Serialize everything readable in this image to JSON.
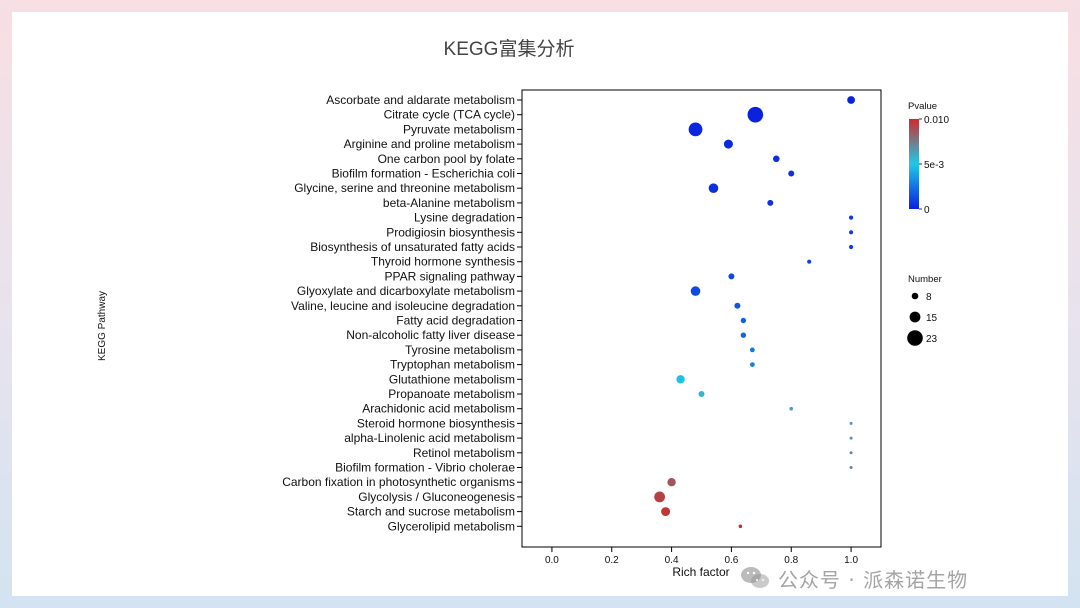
{
  "colors": {
    "pvalue_low": "#0a1fe0",
    "pvalue_mid": "#1fc8e8",
    "pvalue_high": "#cf2b2b",
    "panel_border": "#000000",
    "title_text": "#444444"
  },
  "watermark": {
    "text": "公众号 · 派森诺生物",
    "icon": "wechat-icon"
  },
  "chart_data": {
    "type": "scatter",
    "title": "KEGG富集分析",
    "xlabel": "Rich factor",
    "ylabel": "KEGG Pathway",
    "xlim": [
      -0.1,
      1.1
    ],
    "xticks": [
      "0.0",
      "0.2",
      "0.4",
      "0.6",
      "0.8",
      "1.0"
    ],
    "xtick_values": [
      0.0,
      0.2,
      0.4,
      0.6,
      0.8,
      1.0
    ],
    "grid": false,
    "legend_placement": "right",
    "color_legend": {
      "title": "Pvalue",
      "range": [
        0,
        0.01
      ],
      "ticks": [
        "0.010",
        "5e-3",
        "0"
      ]
    },
    "size_legend": {
      "title": "Number",
      "values": [
        8,
        15,
        23
      ],
      "labels": [
        "8",
        "15",
        "23"
      ]
    },
    "points": [
      {
        "pathway": "Ascorbate and aldarate metabolism",
        "rich_factor": 1.0,
        "number": 10,
        "pvalue": 0.0001
      },
      {
        "pathway": "Citrate cycle (TCA cycle)",
        "rich_factor": 0.68,
        "number": 23,
        "pvalue": 0.0001
      },
      {
        "pathway": "Pyruvate metabolism",
        "rich_factor": 0.48,
        "number": 20,
        "pvalue": 0.0002
      },
      {
        "pathway": "Arginine and proline metabolism",
        "rich_factor": 0.59,
        "number": 12,
        "pvalue": 0.0003
      },
      {
        "pathway": "One carbon pool by folate",
        "rich_factor": 0.75,
        "number": 8,
        "pvalue": 0.0004
      },
      {
        "pathway": "Biofilm formation - Escherichia coli",
        "rich_factor": 0.8,
        "number": 7,
        "pvalue": 0.0005
      },
      {
        "pathway": "Glycine, serine and threonine metabolism",
        "rich_factor": 0.54,
        "number": 13,
        "pvalue": 0.0005
      },
      {
        "pathway": "beta-Alanine metabolism",
        "rich_factor": 0.73,
        "number": 7,
        "pvalue": 0.0006
      },
      {
        "pathway": "Lysine degradation",
        "rich_factor": 1.0,
        "number": 4,
        "pvalue": 0.0007
      },
      {
        "pathway": "Prodigiosin biosynthesis",
        "rich_factor": 1.0,
        "number": 4,
        "pvalue": 0.0008
      },
      {
        "pathway": "Biosynthesis of unsaturated fatty acids",
        "rich_factor": 1.0,
        "number": 4,
        "pvalue": 0.0009
      },
      {
        "pathway": "Thyroid hormone synthesis",
        "rich_factor": 0.86,
        "number": 4,
        "pvalue": 0.001
      },
      {
        "pathway": "PPAR signaling pathway",
        "rich_factor": 0.6,
        "number": 7,
        "pvalue": 0.0012
      },
      {
        "pathway": "Glyoxylate and dicarboxylate metabolism",
        "rich_factor": 0.48,
        "number": 13,
        "pvalue": 0.0013
      },
      {
        "pathway": "Valine, leucine and isoleucine degradation",
        "rich_factor": 0.62,
        "number": 7,
        "pvalue": 0.0016
      },
      {
        "pathway": "Fatty acid degradation",
        "rich_factor": 0.64,
        "number": 6,
        "pvalue": 0.0019
      },
      {
        "pathway": "Non-alcoholic fatty liver disease",
        "rich_factor": 0.64,
        "number": 6,
        "pvalue": 0.0021
      },
      {
        "pathway": "Tyrosine metabolism",
        "rich_factor": 0.67,
        "number": 5,
        "pvalue": 0.0026
      },
      {
        "pathway": "Tryptophan metabolism",
        "rich_factor": 0.67,
        "number": 5,
        "pvalue": 0.0029
      },
      {
        "pathway": "Glutathione metabolism",
        "rich_factor": 0.43,
        "number": 11,
        "pvalue": 0.0048
      },
      {
        "pathway": "Propanoate metabolism",
        "rich_factor": 0.5,
        "number": 7,
        "pvalue": 0.0056
      },
      {
        "pathway": "Arachidonic acid metabolism",
        "rich_factor": 0.8,
        "number": 3,
        "pvalue": 0.0062
      },
      {
        "pathway": "Steroid hormone biosynthesis",
        "rich_factor": 1.0,
        "number": 2,
        "pvalue": 0.0066
      },
      {
        "pathway": "alpha-Linolenic acid metabolism",
        "rich_factor": 1.0,
        "number": 2,
        "pvalue": 0.0068
      },
      {
        "pathway": "Retinol metabolism",
        "rich_factor": 1.0,
        "number": 2,
        "pvalue": 0.007
      },
      {
        "pathway": "Biofilm formation - Vibrio cholerae",
        "rich_factor": 1.0,
        "number": 2,
        "pvalue": 0.0072
      },
      {
        "pathway": "Carbon fixation in photosynthetic organisms",
        "rich_factor": 0.4,
        "number": 11,
        "pvalue": 0.0086
      },
      {
        "pathway": "Glycolysis / Gluconeogenesis",
        "rich_factor": 0.36,
        "number": 15,
        "pvalue": 0.0093
      },
      {
        "pathway": "Starch and sucrose metabolism",
        "rich_factor": 0.38,
        "number": 12,
        "pvalue": 0.0096
      },
      {
        "pathway": "Glycerolipid metabolism",
        "rich_factor": 0.63,
        "number": 3,
        "pvalue": 0.0099
      }
    ]
  }
}
